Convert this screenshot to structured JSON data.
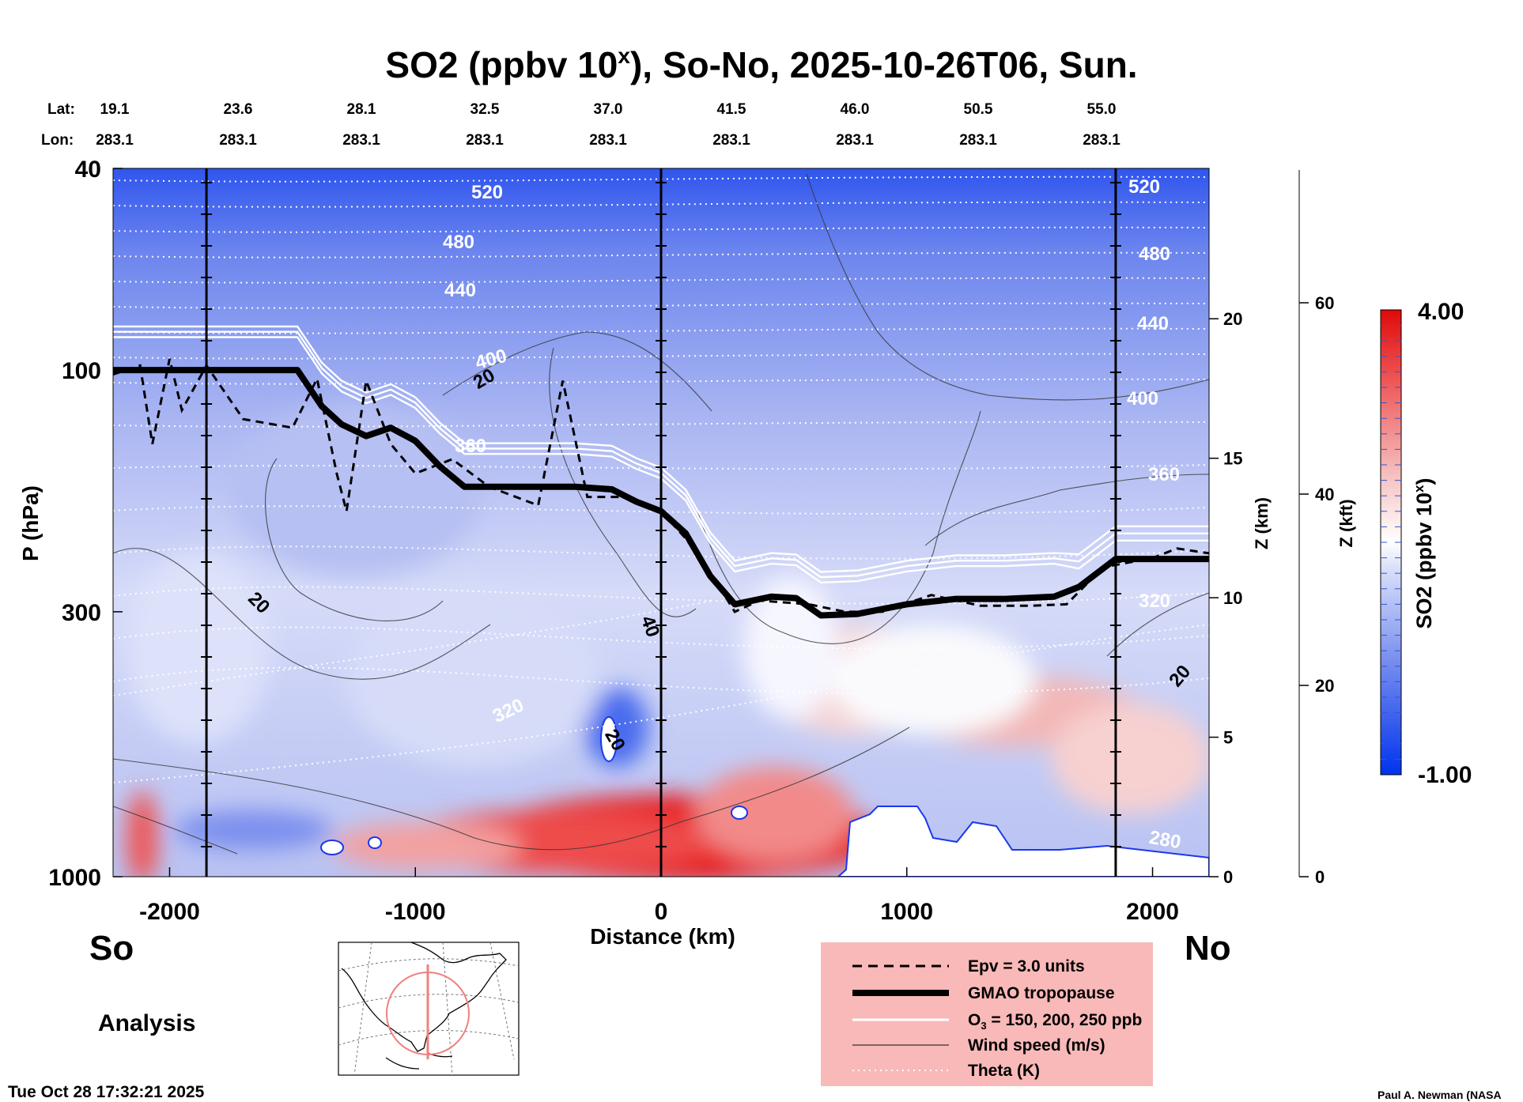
{
  "title": "SO2 (ppbv 10",
  "title_sup": "x",
  "title_rest": "), So-No, 2025-10-26T06, Sun.",
  "header": {
    "lat_label": "Lat:",
    "lon_label": "Lon:",
    "lats": [
      "19.1",
      "23.6",
      "28.1",
      "32.5",
      "37.0",
      "41.5",
      "46.0",
      "50.5",
      "55.0"
    ],
    "lons": [
      "283.1",
      "283.1",
      "283.1",
      "283.1",
      "283.1",
      "283.1",
      "283.1",
      "283.1",
      "283.1"
    ]
  },
  "chart_data": {
    "type": "heatmap",
    "xlabel": "Distance (km)",
    "ylabel": "P (hPa)",
    "z_km_label": "Z (km)",
    "z_kft_label": "Z (kft)",
    "xlim": [
      -2230,
      2230
    ],
    "ylim_hpa": [
      1000,
      40
    ],
    "y_scale": "log",
    "x_ticks": [
      -2000,
      -1000,
      0,
      1000,
      2000
    ],
    "y_ticks": [
      40,
      100,
      300,
      1000
    ],
    "z_km_ticks": [
      0,
      5,
      10,
      15,
      20
    ],
    "z_kft_ticks": [
      0,
      20,
      40,
      60
    ],
    "colorbar": {
      "label": "SO2 (ppbv 10",
      "label_sup": "x",
      "label_end": ")",
      "min": "-1.00",
      "max": "4.00",
      "min_value": -1.0,
      "max_value": 4.0
    },
    "theta_labels": [
      "520",
      "480",
      "440",
      "400",
      "360",
      "320",
      "280"
    ],
    "wind_labels": [
      "20",
      "40"
    ],
    "tropopause": [
      [
        -2230,
        100
      ],
      [
        -1850,
        100
      ],
      [
        -1480,
        100
      ],
      [
        -1380,
        118
      ],
      [
        -1300,
        128
      ],
      [
        -1200,
        135
      ],
      [
        -1100,
        130
      ],
      [
        -1000,
        138
      ],
      [
        -900,
        155
      ],
      [
        -800,
        170
      ],
      [
        -700,
        170
      ],
      [
        -600,
        170
      ],
      [
        -500,
        170
      ],
      [
        -350,
        170
      ],
      [
        -200,
        172
      ],
      [
        -100,
        182
      ],
      [
        0,
        190
      ],
      [
        100,
        210
      ],
      [
        200,
        255
      ],
      [
        300,
        290
      ],
      [
        450,
        280
      ],
      [
        550,
        282
      ],
      [
        650,
        305
      ],
      [
        800,
        303
      ],
      [
        1000,
        290
      ],
      [
        1200,
        283
      ],
      [
        1400,
        283
      ],
      [
        1600,
        280
      ],
      [
        1700,
        268
      ],
      [
        1850,
        236
      ],
      [
        2000,
        236
      ],
      [
        2230,
        236
      ]
    ],
    "epv": [
      [
        -2230,
        102
      ],
      [
        -2120,
        98
      ],
      [
        -2070,
        140
      ],
      [
        -2000,
        95
      ],
      [
        -1950,
        120
      ],
      [
        -1850,
        98
      ],
      [
        -1700,
        125
      ],
      [
        -1500,
        130
      ],
      [
        -1400,
        104
      ],
      [
        -1320,
        160
      ],
      [
        -1280,
        190
      ],
      [
        -1200,
        105
      ],
      [
        -1100,
        140
      ],
      [
        -1000,
        160
      ],
      [
        -850,
        150
      ],
      [
        -700,
        170
      ],
      [
        -500,
        185
      ],
      [
        -400,
        105
      ],
      [
        -300,
        178
      ],
      [
        -150,
        178
      ],
      [
        0,
        190
      ],
      [
        100,
        215
      ],
      [
        220,
        260
      ],
      [
        300,
        300
      ],
      [
        400,
        285
      ],
      [
        600,
        290
      ],
      [
        750,
        300
      ],
      [
        900,
        300
      ],
      [
        1100,
        278
      ],
      [
        1300,
        292
      ],
      [
        1500,
        292
      ],
      [
        1650,
        290
      ],
      [
        1800,
        245
      ],
      [
        2000,
        235
      ],
      [
        2100,
        225
      ],
      [
        2230,
        230
      ]
    ],
    "colorscale": [
      "#0033ee",
      "#5577ee",
      "#aab8f4",
      "#eeeefa",
      "#ffffff",
      "#f6c8c8",
      "#ee6666",
      "#e01010"
    ]
  },
  "regions": {
    "south": "So",
    "north": "No"
  },
  "analysis_label": "Analysis",
  "timestamp": "Tue Oct 28 17:32:21 2025",
  "credit": "Paul A. Newman (NASA",
  "legend": {
    "epv": "Epv = 3.0 units",
    "tropopause": "GMAO tropopause",
    "o3_pre": "O",
    "o3_sub": "3",
    "o3_post": " = 150, 200, 250 ppb",
    "wind": "Wind speed (m/s)",
    "theta": "Theta (K)"
  }
}
